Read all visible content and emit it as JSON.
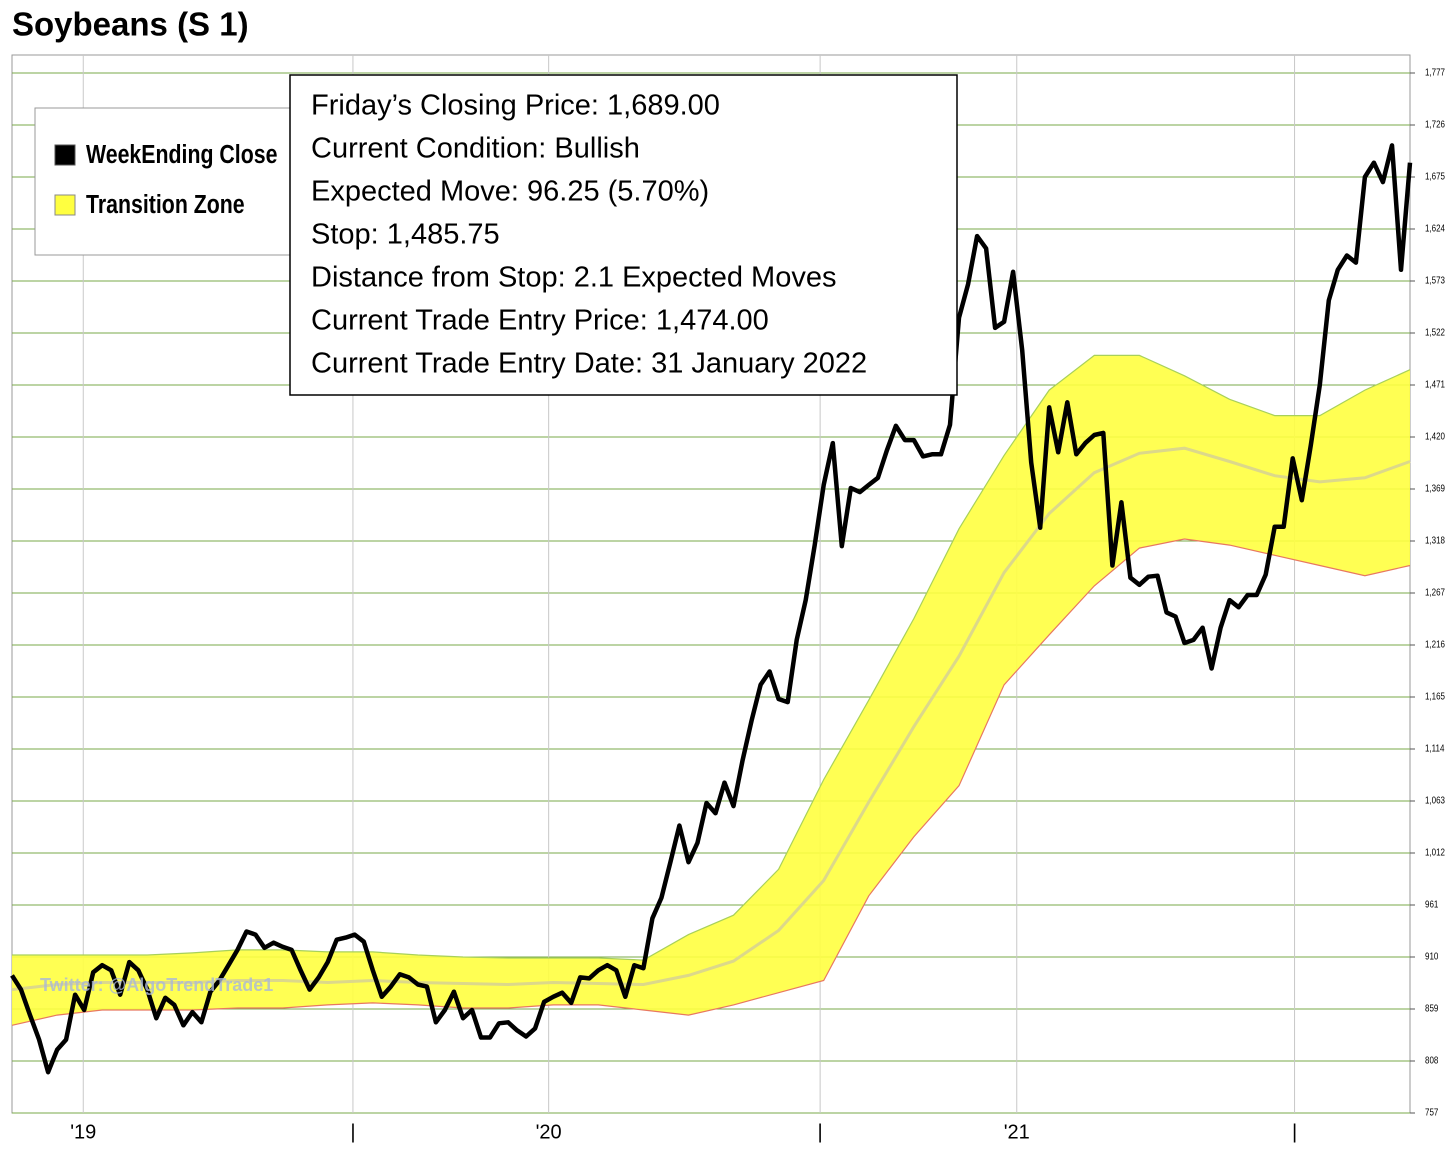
{
  "chart_data": {
    "type": "line",
    "title": "Soybeans (S 1)",
    "watermark": "Twitter: @AlgoTrendTrade1",
    "info": [
      "Friday’s Closing Price: 1,689.00",
      "Current Condition: Bullish",
      "Expected Move: 96.25 (5.70%)",
      "Stop: 1,485.75",
      "Distance from Stop: 2.1 Expected Moves",
      "Current Trade Entry Price: 1,474.00",
      "Current Trade Entry Date: 31 January 2022"
    ],
    "x": [
      0,
      1,
      2,
      3,
      4,
      5,
      6,
      7,
      8,
      9,
      10,
      11,
      12,
      13,
      14,
      15,
      16,
      17,
      18,
      19,
      20,
      21,
      22,
      23,
      24,
      25,
      26,
      27,
      28,
      29,
      30,
      31,
      32,
      33,
      34,
      35,
      36,
      37,
      38,
      39,
      40,
      41,
      42,
      43,
      44,
      45,
      46,
      47,
      48,
      49,
      50,
      51,
      52,
      53,
      54,
      55,
      56,
      57,
      58,
      59,
      60,
      61,
      62,
      63,
      64,
      65,
      66,
      67,
      68,
      69,
      70,
      71,
      72,
      73,
      74,
      75,
      76,
      77,
      78,
      79,
      80,
      81,
      82,
      83,
      84,
      85,
      86,
      87,
      88,
      89,
      90,
      91,
      92,
      93,
      94,
      95,
      96,
      97,
      98,
      99,
      100,
      101,
      102,
      103,
      104,
      105,
      106,
      107,
      108,
      109,
      110,
      111,
      112,
      113,
      114,
      115,
      116,
      117,
      118,
      119,
      120,
      121,
      122,
      123,
      124,
      125,
      126,
      127,
      128,
      129,
      130,
      131,
      132,
      133,
      134,
      135,
      136,
      137,
      138,
      139,
      140,
      141,
      142,
      143,
      144,
      145,
      146,
      147,
      148,
      149,
      150,
      151,
      152,
      153,
      154,
      155
    ],
    "series": [
      {
        "name": "WeekEnding Close",
        "color": "#000000",
        "values": [
          892,
          878,
          853,
          829,
          797,
          819,
          829,
          873,
          858,
          895,
          902,
          897,
          873,
          905,
          897,
          878,
          850,
          870,
          863,
          843,
          856,
          846,
          876,
          887,
          902,
          917,
          935,
          932,
          919,
          924,
          920,
          917,
          897,
          878,
          890,
          905,
          927,
          929,
          932,
          925,
          897,
          871,
          881,
          893,
          890,
          883,
          881,
          846,
          858,
          876,
          850,
          858,
          831,
          831,
          845,
          846,
          838,
          832,
          840,
          866,
          871,
          875,
          865,
          890,
          889,
          897,
          902,
          897,
          871,
          902,
          899,
          948,
          968,
          1003,
          1039,
          1003,
          1022,
          1061,
          1051,
          1081,
          1058,
          1103,
          1142,
          1177,
          1190,
          1163,
          1160,
          1221,
          1260,
          1314,
          1373,
          1414,
          1313,
          1370,
          1366,
          1373,
          1380,
          1407,
          1431,
          1417,
          1417,
          1401,
          1403,
          1403,
          1432,
          1537,
          1570,
          1617,
          1605,
          1527,
          1533,
          1582,
          1505,
          1395,
          1331,
          1449,
          1405,
          1454,
          1403,
          1414,
          1422,
          1424,
          1294,
          1356,
          1282,
          1275,
          1283,
          1284,
          1248,
          1244,
          1218,
          1221,
          1233,
          1193,
          1233,
          1260,
          1253,
          1265,
          1265,
          1285,
          1332,
          1332,
          1399,
          1358,
          1412,
          1471,
          1554,
          1584,
          1598,
          1591,
          1675,
          1689,
          1670,
          1706,
          1584,
          1689
        ]
      },
      {
        "name": "Transition Zone",
        "color": "#ffff40",
        "x": [
          0,
          5,
          10,
          15,
          20,
          25,
          30,
          35,
          40,
          45,
          50,
          55,
          60,
          65,
          70,
          75,
          80,
          85,
          90,
          95,
          100,
          105,
          110,
          115,
          120,
          125,
          130,
          135,
          140,
          145,
          150,
          155
        ],
        "upper": [
          912,
          912,
          912,
          912,
          914,
          917,
          917,
          915,
          915,
          912,
          910,
          909,
          909,
          909,
          907,
          932,
          951,
          996,
          1084,
          1162,
          1242,
          1330,
          1402,
          1466,
          1500,
          1500,
          1480,
          1457,
          1441,
          1441,
          1466,
          1486
        ],
        "lower": [
          843,
          853,
          858,
          858,
          858,
          860,
          860,
          863,
          865,
          863,
          860,
          860,
          863,
          863,
          858,
          853,
          863,
          875,
          887,
          970,
          1028,
          1078,
          1177,
          1226,
          1274,
          1311,
          1320,
          1314,
          1304,
          1294,
          1284,
          1294
        ],
        "mid": [
          878,
          883,
          885,
          885,
          885,
          887,
          887,
          885,
          887,
          885,
          884,
          883,
          885,
          884,
          883,
          892,
          906,
          936,
          985,
          1062,
          1136,
          1205,
          1287,
          1345,
          1385,
          1404,
          1409,
          1396,
          1382,
          1376,
          1380,
          1396
        ]
      }
    ],
    "xlim": [
      0,
      155
    ],
    "xticks": [
      {
        "value": 7.9,
        "label": "'19"
      },
      {
        "value": 37.8,
        "label": "|"
      },
      {
        "value": 59.5,
        "label": "'20"
      },
      {
        "value": 89.6,
        "label": "|"
      },
      {
        "value": 111.4,
        "label": "'21"
      },
      {
        "value": 142.2,
        "label": "|"
      }
    ],
    "ylim": [
      757,
      1777
    ],
    "yticks": [
      757,
      808,
      859,
      910,
      961,
      {
        "value": 1012,
        "label": "1,012"
      },
      {
        "value": 1063,
        "label": "1,063"
      },
      {
        "value": 1114,
        "label": "1,114"
      },
      {
        "value": 1165,
        "label": "1,165"
      },
      {
        "value": 1216,
        "label": "1,216"
      },
      {
        "value": 1267,
        "label": "1,267"
      },
      {
        "value": 1318,
        "label": "1,318"
      },
      {
        "value": 1369,
        "label": "1,369"
      },
      {
        "value": 1420,
        "label": "1,420"
      },
      {
        "value": 1471,
        "label": "1,471"
      },
      {
        "value": 1522,
        "label": "1,522"
      },
      {
        "value": 1573,
        "label": "1,573"
      },
      {
        "value": 1624,
        "label": "1,624"
      },
      {
        "value": 1675,
        "label": "1,675"
      },
      {
        "value": 1726,
        "label": "1,726"
      },
      {
        "value": 1777,
        "label": "1,777"
      }
    ],
    "grid": true
  }
}
